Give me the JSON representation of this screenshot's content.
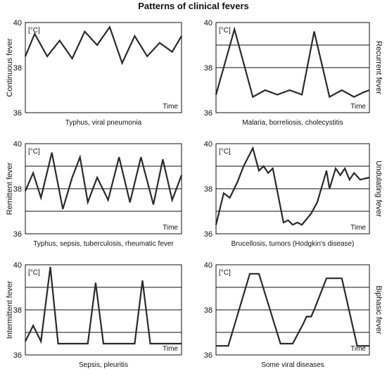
{
  "title": "Patterns of clinical fevers",
  "unit_label": "[°C]",
  "time_label": "Time",
  "chart_data": [
    {
      "type": "line",
      "name": "Continuous fever",
      "caption": "Typhus, viral pneumonia",
      "ylim": [
        36,
        40
      ],
      "yticks": [
        "40",
        "38",
        "36"
      ],
      "reference_lines": [],
      "x": [
        0,
        6,
        14,
        22,
        30,
        38,
        46,
        54,
        62,
        70,
        78,
        86,
        94,
        100
      ],
      "y": [
        38.5,
        39.5,
        38.5,
        39.2,
        38.4,
        39.6,
        39.0,
        39.8,
        38.2,
        39.4,
        38.5,
        39.1,
        38.7,
        39.4
      ]
    },
    {
      "type": "line",
      "name": "Recurrent fever",
      "caption": "Malaria, borreliosis, cholecystitis",
      "ylim": [
        36,
        40
      ],
      "yticks": [
        "40",
        "38",
        "36"
      ],
      "reference_lines": [
        39.0,
        38.0
      ],
      "x": [
        0,
        12,
        24,
        32,
        40,
        48,
        56,
        64,
        74,
        82,
        90,
        96,
        100
      ],
      "y": [
        36.8,
        39.7,
        36.7,
        37.0,
        36.8,
        37.0,
        36.8,
        39.6,
        36.7,
        37.0,
        36.7,
        36.9,
        37.0
      ]
    },
    {
      "type": "line",
      "name": "Remittent fever",
      "caption": "Typhus, sepsis, tuberculosis, rheumatic fever",
      "ylim": [
        36,
        40
      ],
      "yticks": [
        "40",
        "38",
        "36"
      ],
      "reference_lines": [
        39.0,
        38.0,
        37.0
      ],
      "x": [
        0,
        5,
        10,
        17,
        24,
        30,
        35,
        40,
        46,
        53,
        60,
        67,
        74,
        82,
        88,
        94,
        100
      ],
      "y": [
        37.9,
        38.7,
        37.6,
        39.6,
        37.1,
        38.5,
        39.4,
        37.4,
        38.5,
        37.5,
        39.4,
        37.4,
        39.4,
        37.3,
        39.3,
        37.5,
        38.6
      ]
    },
    {
      "type": "line",
      "name": "Undulating fever",
      "caption": "Brucellosis, tumors (Hodgkin's disease)",
      "ylim": [
        36,
        40
      ],
      "yticks": [
        "40",
        "38",
        "36"
      ],
      "reference_lines": [
        39.0,
        38.0,
        37.0
      ],
      "x": [
        0,
        5,
        9,
        14,
        18,
        24,
        28,
        31,
        34,
        37,
        44,
        47,
        50,
        53,
        56,
        62,
        66,
        72,
        74,
        78,
        81,
        84,
        87,
        90,
        94,
        100
      ],
      "y": [
        36.4,
        37.8,
        37.6,
        38.3,
        39.0,
        39.8,
        38.8,
        39.0,
        38.7,
        38.9,
        36.5,
        36.6,
        36.4,
        36.5,
        36.4,
        36.9,
        37.4,
        38.8,
        38.0,
        38.9,
        38.6,
        38.9,
        38.4,
        38.7,
        38.4,
        38.5
      ]
    },
    {
      "type": "line",
      "name": "Intermittent fever",
      "caption": "Sepsis, pleuritis",
      "ylim": [
        36,
        40
      ],
      "yticks": [
        "40",
        "38",
        "36"
      ],
      "reference_lines": [
        39.0,
        38.0,
        37.0
      ],
      "x": [
        0,
        5,
        10,
        16,
        21,
        32,
        40,
        45,
        50,
        60,
        70,
        75,
        80,
        90,
        100
      ],
      "y": [
        36.6,
        37.3,
        36.6,
        39.9,
        36.5,
        36.5,
        36.5,
        39.2,
        36.5,
        36.5,
        36.5,
        39.3,
        36.5,
        36.5,
        36.5
      ]
    },
    {
      "type": "line",
      "name": "Biphasic fever",
      "caption": "Some viral diseases",
      "ylim": [
        36,
        40
      ],
      "yticks": [
        "40",
        "38",
        "36"
      ],
      "reference_lines": [
        39.0,
        38.0,
        37.0
      ],
      "x": [
        0,
        8,
        22,
        28,
        42,
        50,
        57,
        59,
        62,
        64,
        72,
        82,
        92,
        100
      ],
      "y": [
        36.4,
        36.4,
        39.6,
        39.6,
        36.5,
        36.5,
        37.4,
        37.7,
        37.7,
        38.0,
        39.4,
        39.4,
        36.4,
        36.4
      ]
    }
  ]
}
